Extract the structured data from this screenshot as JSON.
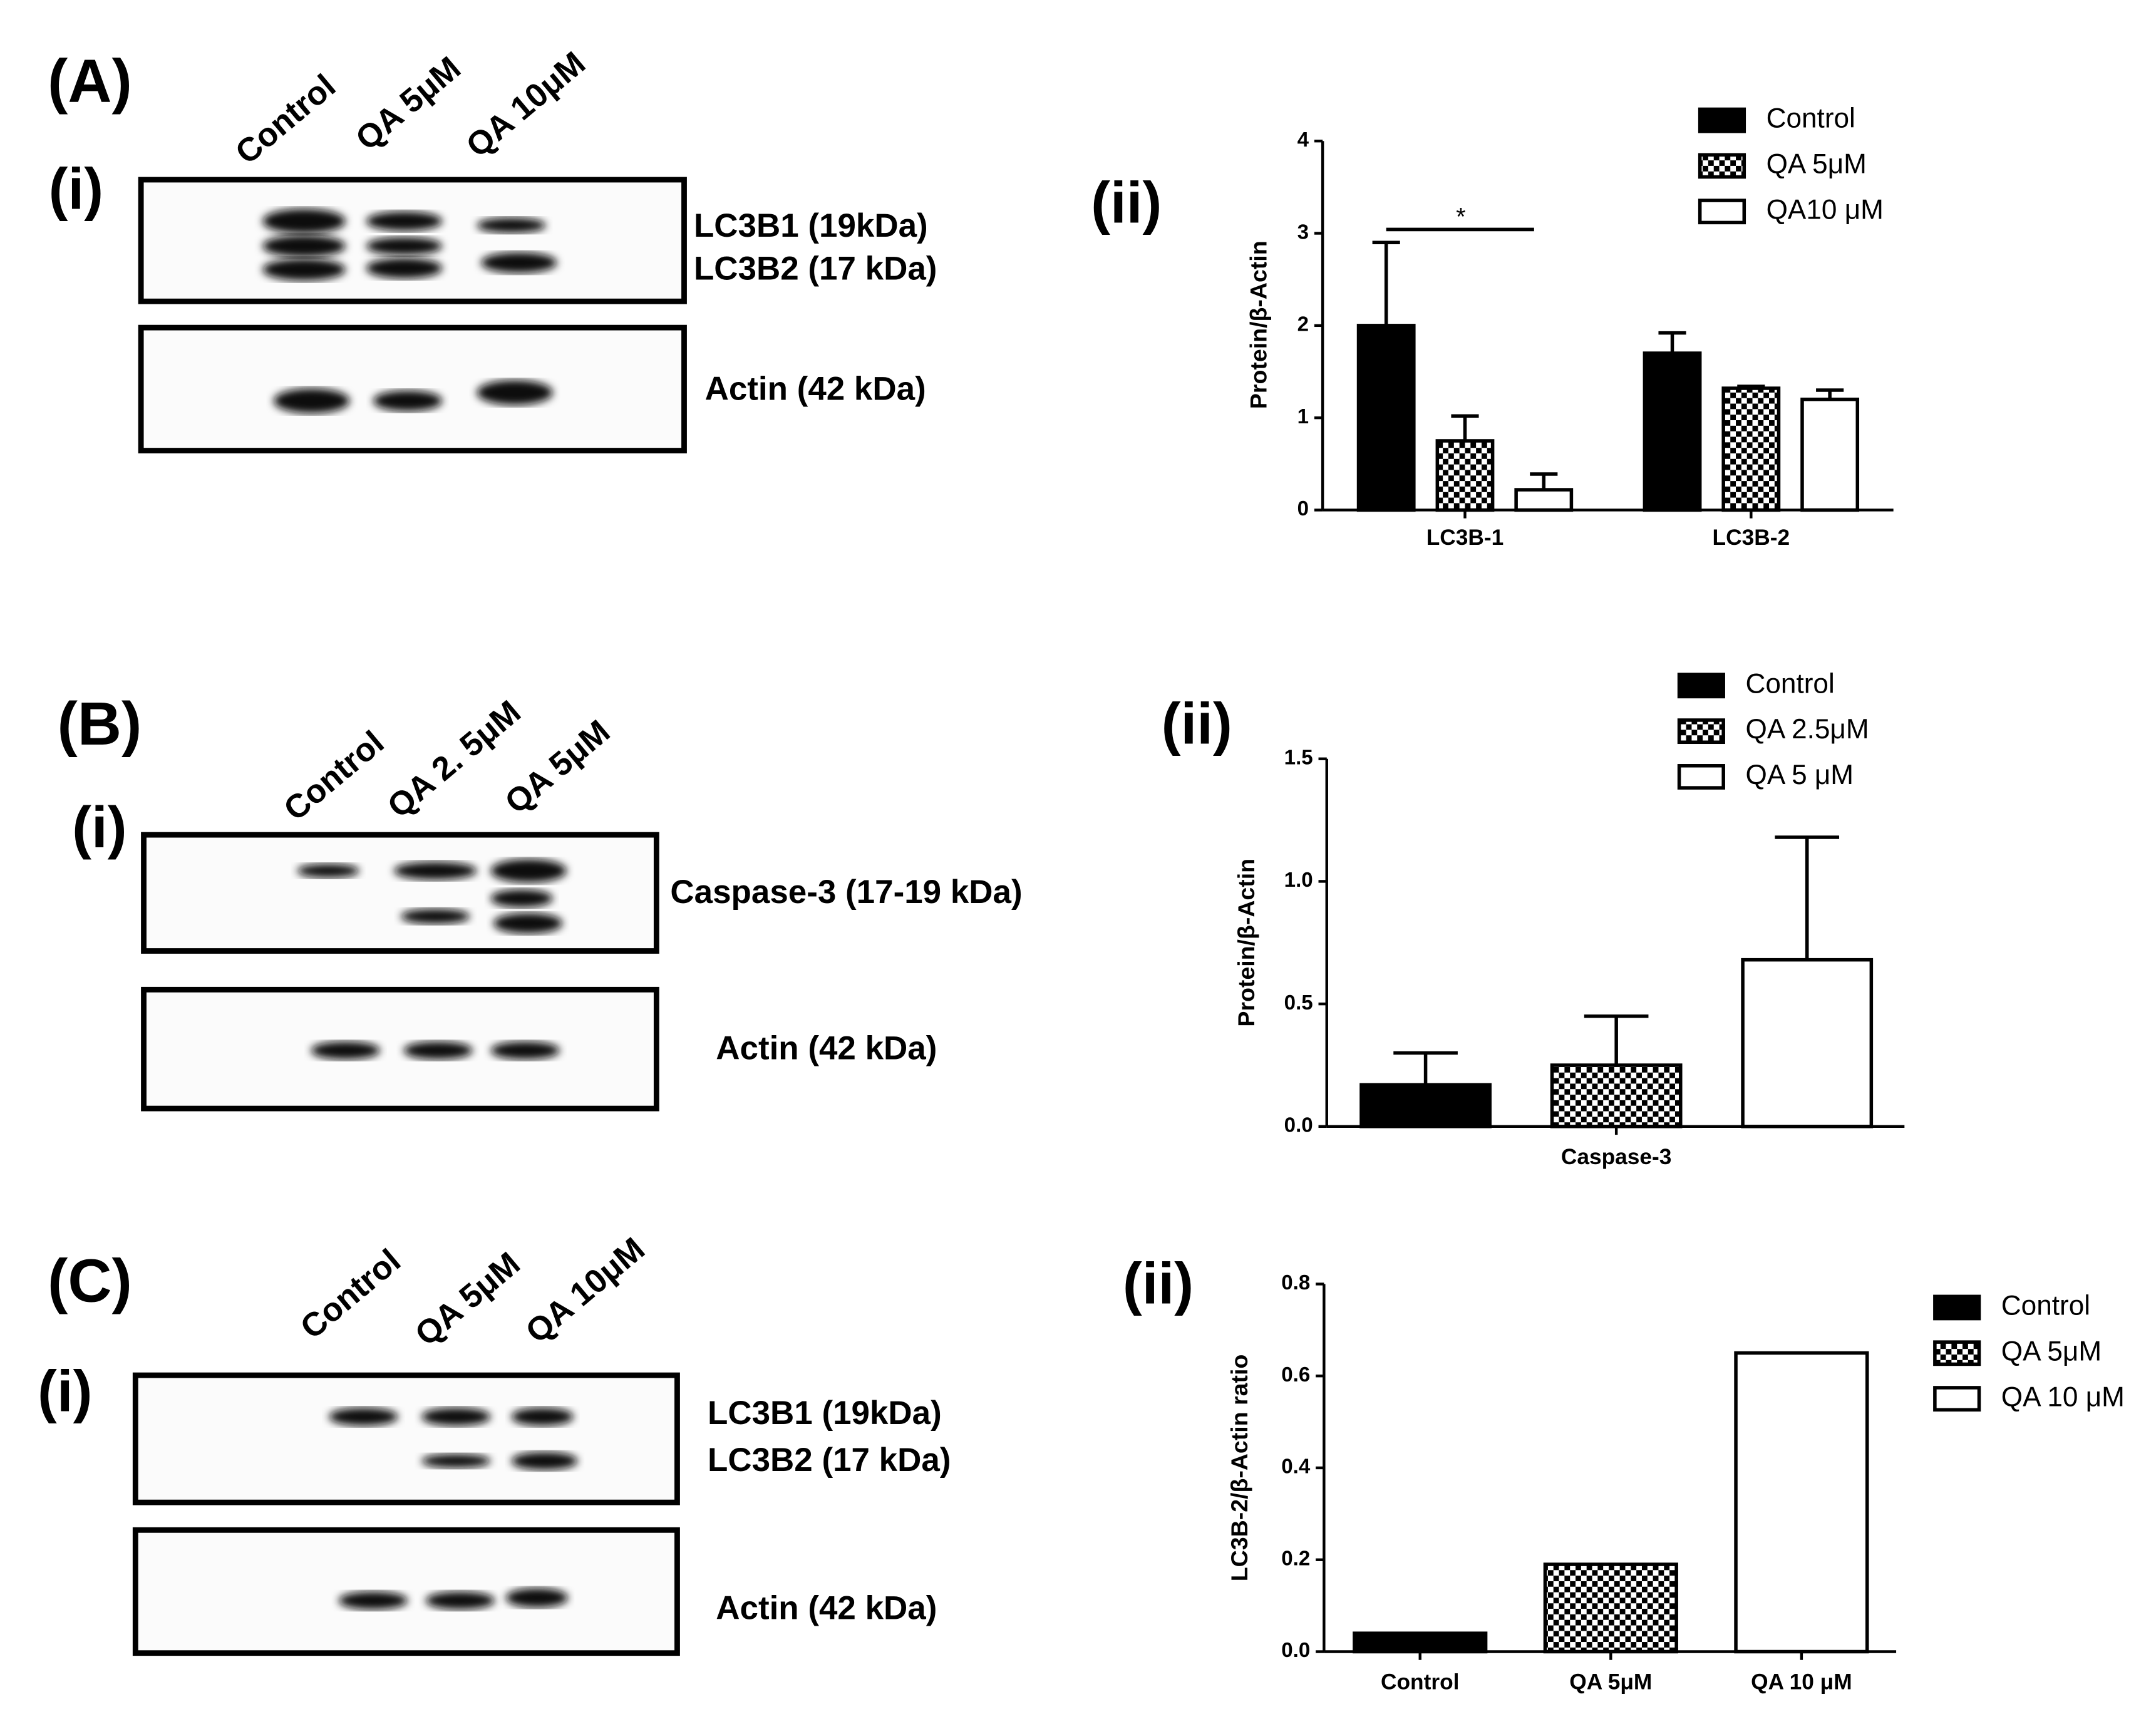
{
  "panels": [
    {
      "label": "(A)",
      "sub": "(i)",
      "sub2": "(ii)",
      "lanes": [
        "Control",
        "QA 5μM",
        "QA 10μM"
      ],
      "bands": [
        "LC3B1 (19kDa)",
        "LC3B2 (17 kDa)",
        "Actin (42 kDa)"
      ]
    },
    {
      "label": "(B)",
      "sub": "(i)",
      "sub2": "(ii)",
      "lanes": [
        "Control",
        "QA 2. 5μM",
        "QA 5μM"
      ],
      "bands": [
        "Caspase-3 (17-19 kDa)",
        "Actin (42 kDa)"
      ]
    },
    {
      "label": "(C)",
      "sub": "(i)",
      "sub2": "(ii)",
      "lanes": [
        "Control",
        "QA 5μM",
        "QA 10μM"
      ],
      "bands": [
        "LC3B1 (19kDa)",
        "LC3B2 (17 kDa)",
        "Actin (42 kDa)"
      ]
    }
  ],
  "chart_data": [
    {
      "type": "bar",
      "y_label": "Protein/β-Actin",
      "categories": [
        "LC3B-1",
        "LC3B-2"
      ],
      "series": [
        {
          "name": "Control",
          "fill": "solid",
          "values": [
            2.0,
            1.7
          ],
          "errors": [
            0.9,
            0.22
          ]
        },
        {
          "name": "QA 5μM",
          "fill": "checker",
          "values": [
            0.75,
            1.32
          ],
          "errors": [
            0.27,
            0.02
          ]
        },
        {
          "name": "QA10 μM",
          "fill": "white",
          "values": [
            0.22,
            1.2
          ],
          "errors": [
            0.17,
            0.1
          ]
        }
      ],
      "ylim": [
        0,
        4
      ],
      "yticks": [
        0,
        1,
        2,
        3,
        4
      ],
      "annotation": "*"
    },
    {
      "type": "bar",
      "y_label": "Protein/β-Actin",
      "categories": [
        "Caspase-3"
      ],
      "series": [
        {
          "name": "Control",
          "fill": "solid",
          "values": [
            0.17
          ],
          "errors": [
            0.13
          ]
        },
        {
          "name": "QA 2.5μM",
          "fill": "checker",
          "values": [
            0.25
          ],
          "errors": [
            0.2
          ]
        },
        {
          "name": "QA 5 μM",
          "fill": "white",
          "values": [
            0.68
          ],
          "errors": [
            0.5
          ]
        }
      ],
      "ylim": [
        0,
        1.5
      ],
      "yticks": [
        {
          "value": 0,
          "label": "0.0"
        },
        0.5,
        {
          "value": 1,
          "label": "1.0"
        },
        1.5
      ]
    },
    {
      "type": "bar",
      "y_label": "LC3B-2/β-Actin ratio",
      "categories": [
        "Control",
        "QA 5μM",
        "QA 10 μM"
      ],
      "values": [
        0.04,
        0.19,
        0.65
      ],
      "fills": [
        "solid",
        "checker",
        "white"
      ],
      "ylim": [
        0,
        0.8
      ],
      "yticks": [
        {
          "value": 0,
          "label": "0.0"
        },
        0.2,
        0.4,
        0.6,
        0.8
      ]
    }
  ]
}
